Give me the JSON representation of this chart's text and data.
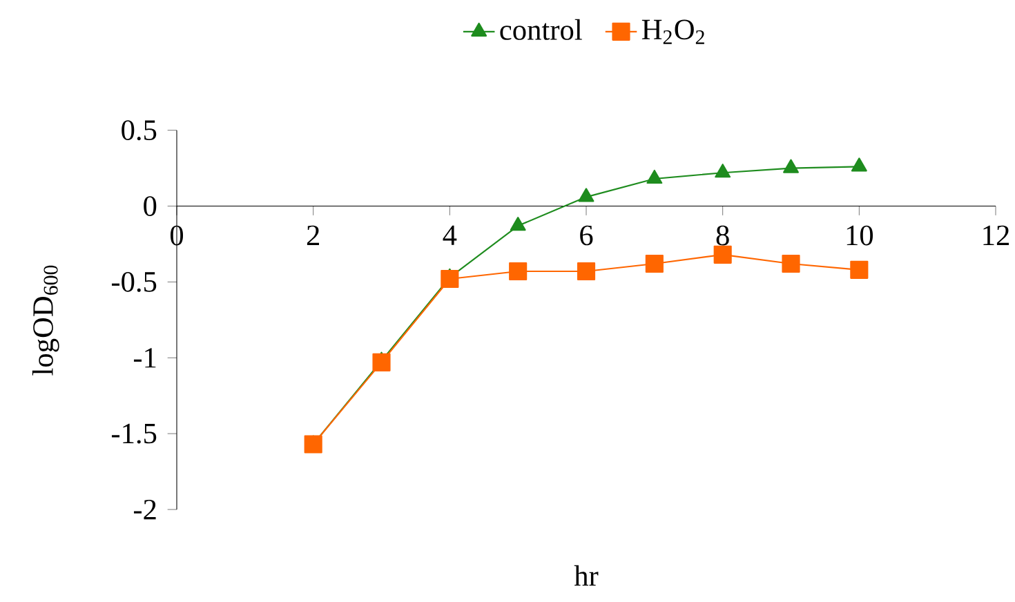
{
  "chart_data": {
    "type": "line",
    "xlabel": "hr",
    "ylabel": "logOD$_{600}$",
    "x": [
      2,
      3,
      4,
      5,
      6,
      7,
      8,
      9,
      10
    ],
    "series": [
      {
        "name": "control",
        "color": "#1e8c1e",
        "marker": "triangle",
        "values": [
          -1.57,
          -1.02,
          -0.47,
          -0.13,
          0.06,
          0.18,
          0.22,
          0.25,
          0.26
        ]
      },
      {
        "name": "H$_{2}$O$_{2}$",
        "color": "#ff6600",
        "marker": "square",
        "values": [
          -1.57,
          -1.03,
          -0.48,
          -0.43,
          -0.43,
          -0.38,
          -0.32,
          -0.38,
          -0.42
        ]
      }
    ],
    "xlim": [
      0,
      12
    ],
    "ylim": [
      -2,
      0.5
    ],
    "xticks": [
      0,
      2,
      4,
      6,
      8,
      10,
      12
    ],
    "yticks": [
      -2,
      -1.5,
      -1,
      -0.5,
      0,
      0.5
    ],
    "legend": "top",
    "line_style": "solid"
  }
}
